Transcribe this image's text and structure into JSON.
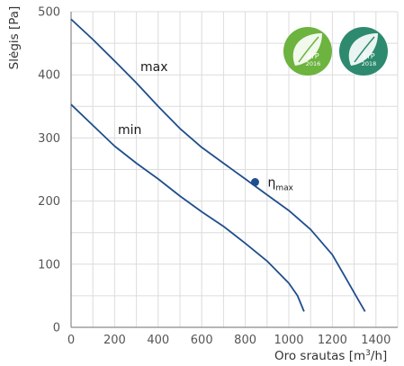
{
  "chart_data": {
    "type": "line",
    "xlabel_main": "Oro srautas [m",
    "xlabel_sup": "3",
    "xlabel_tail": "/h]",
    "ylabel": "Slėgis [Pa]",
    "xlim": [
      0,
      1500
    ],
    "ylim": [
      0,
      500
    ],
    "xticks": [
      0,
      200,
      400,
      600,
      800,
      1000,
      1200,
      1400
    ],
    "yticks": [
      0,
      100,
      200,
      300,
      400,
      500
    ],
    "grid": true,
    "series": [
      {
        "name": "max",
        "color": "#1f4e8c",
        "x": [
          0,
          100,
          200,
          300,
          400,
          500,
          600,
          700,
          800,
          900,
          1000,
          1100,
          1200,
          1300,
          1350
        ],
        "y": [
          488,
          456,
          422,
          387,
          350,
          315,
          285,
          260,
          235,
          210,
          185,
          155,
          115,
          55,
          25
        ]
      },
      {
        "name": "min",
        "color": "#1f4e8c",
        "x": [
          0,
          100,
          200,
          300,
          400,
          500,
          600,
          700,
          800,
          900,
          1000,
          1040,
          1070
        ],
        "y": [
          353,
          320,
          287,
          260,
          235,
          208,
          183,
          160,
          133,
          105,
          70,
          50,
          25
        ]
      }
    ],
    "annotations": [
      {
        "label": "η",
        "sub": "max",
        "x": 845,
        "y": 230
      }
    ],
    "badges": [
      {
        "name": "ErP",
        "year": "2016",
        "color": "#6db33f"
      },
      {
        "name": "ErP",
        "year": "2018",
        "color": "#2d8a6e"
      }
    ]
  }
}
